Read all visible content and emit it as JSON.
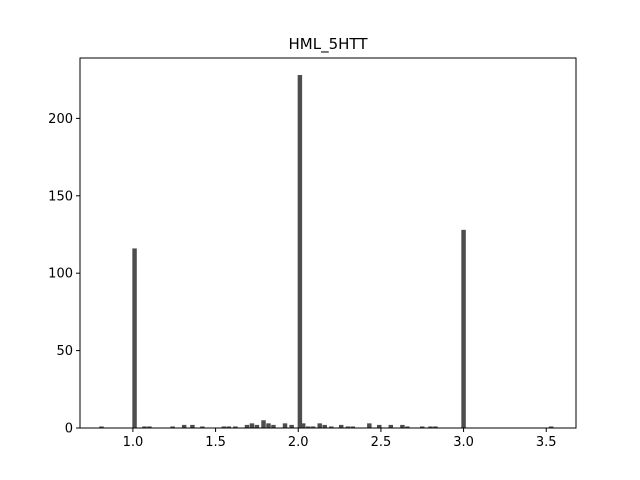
{
  "chart_data": {
    "type": "bar",
    "title": "HML_5HTT",
    "xlabel": "",
    "ylabel": "",
    "xlim": [
      0.68,
      3.68
    ],
    "ylim": [
      0,
      239
    ],
    "xticks": [
      1.0,
      1.5,
      2.0,
      2.5,
      3.0,
      3.5
    ],
    "xtick_labels": [
      "1.0",
      "1.5",
      "2.0",
      "2.5",
      "3.0",
      "3.5"
    ],
    "yticks": [
      0,
      50,
      100,
      150,
      200
    ],
    "ytick_labels": [
      "0",
      "50",
      "100",
      "150",
      "200"
    ],
    "bar_color": "#4d4d4d",
    "bin_width": 0.027,
    "grid": false,
    "bins": [
      {
        "x": 0.81,
        "count": 1
      },
      {
        "x": 1.01,
        "count": 116
      },
      {
        "x": 1.07,
        "count": 1
      },
      {
        "x": 1.1,
        "count": 1
      },
      {
        "x": 1.24,
        "count": 1
      },
      {
        "x": 1.31,
        "count": 2
      },
      {
        "x": 1.36,
        "count": 2
      },
      {
        "x": 1.42,
        "count": 1
      },
      {
        "x": 1.55,
        "count": 1
      },
      {
        "x": 1.58,
        "count": 1
      },
      {
        "x": 1.62,
        "count": 1
      },
      {
        "x": 1.69,
        "count": 2
      },
      {
        "x": 1.72,
        "count": 3
      },
      {
        "x": 1.75,
        "count": 2
      },
      {
        "x": 1.79,
        "count": 5
      },
      {
        "x": 1.82,
        "count": 3
      },
      {
        "x": 1.85,
        "count": 2
      },
      {
        "x": 1.92,
        "count": 3
      },
      {
        "x": 1.96,
        "count": 2
      },
      {
        "x": 2.01,
        "count": 228
      },
      {
        "x": 2.03,
        "count": 3
      },
      {
        "x": 2.06,
        "count": 1
      },
      {
        "x": 2.09,
        "count": 1
      },
      {
        "x": 2.13,
        "count": 3
      },
      {
        "x": 2.16,
        "count": 2
      },
      {
        "x": 2.2,
        "count": 1
      },
      {
        "x": 2.26,
        "count": 2
      },
      {
        "x": 2.3,
        "count": 1
      },
      {
        "x": 2.33,
        "count": 1
      },
      {
        "x": 2.43,
        "count": 3
      },
      {
        "x": 2.49,
        "count": 2
      },
      {
        "x": 2.56,
        "count": 2
      },
      {
        "x": 2.63,
        "count": 2
      },
      {
        "x": 2.66,
        "count": 1
      },
      {
        "x": 2.75,
        "count": 1
      },
      {
        "x": 2.8,
        "count": 1
      },
      {
        "x": 2.83,
        "count": 1
      },
      {
        "x": 3.0,
        "count": 128
      },
      {
        "x": 3.53,
        "count": 1
      }
    ]
  }
}
